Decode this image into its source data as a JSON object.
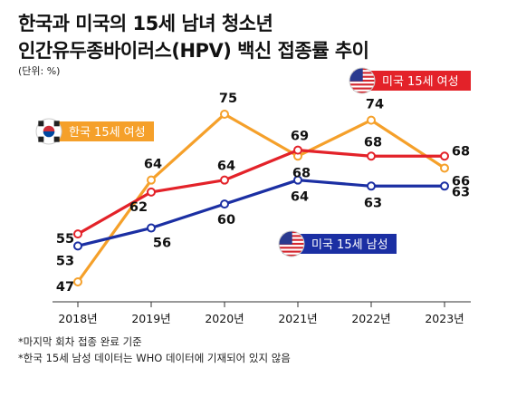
{
  "header": {
    "title_line1": "한국과 미국의 15세 남녀 청소년",
    "title_line2": "인간유두종바이러스(HPV) 백신 접종률 추이",
    "unit": "(단위: %)"
  },
  "footnotes": [
    "*마지막 회차 접종 완료 기준",
    "*한국 15세 남성 데이터는 WHO 데이터에 기재되어 있지 않음"
  ],
  "chart_data": {
    "type": "line",
    "categories": [
      "2018년",
      "2019년",
      "2020년",
      "2021년",
      "2022년",
      "2023년"
    ],
    "ylim": [
      40,
      80
    ],
    "grid": false,
    "series": [
      {
        "name": "미국 15세 여성",
        "color": "#e32229",
        "values": [
          55,
          62,
          64,
          69,
          68,
          68
        ],
        "legend_flag": "us"
      },
      {
        "name": "미국 15세 남성",
        "color": "#1b2fa3",
        "values": [
          53,
          56,
          60,
          64,
          63,
          63
        ],
        "legend_flag": "us"
      },
      {
        "name": "한국 15세 여성",
        "color": "#f5a02a",
        "values": [
          47,
          64,
          75,
          68,
          74,
          66
        ],
        "legend_flag": "kr"
      }
    ]
  }
}
